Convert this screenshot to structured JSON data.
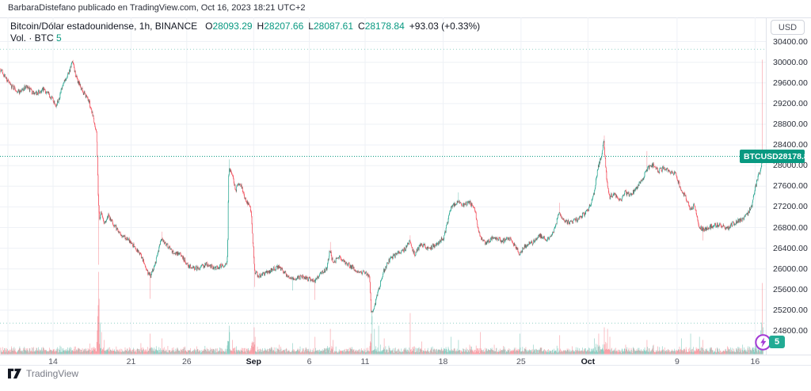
{
  "header": {
    "attribution": "BarbaraDistefano publicado en TradingView.com, Oct 16, 2023 18:21 UTC+2"
  },
  "legend": {
    "series_title": "Bitcoin/Dólar estadounidense, 1h, BINANCE",
    "ohlc": [
      {
        "label": "O",
        "value": "28093.29"
      },
      {
        "label": "H",
        "value": "28207.66"
      },
      {
        "label": "L",
        "value": "28087.61"
      },
      {
        "label": "C",
        "value": "28178.84"
      }
    ],
    "change": "+93.03 (+0.33%)",
    "volume_label": "Vol. · BTC",
    "volume_value": "5"
  },
  "price_scale": {
    "currency_button": "USD",
    "ticks": [
      "30400.00",
      "30000.00",
      "29600.00",
      "29200.00",
      "28800.00",
      "28400.00",
      "28000.00",
      "27600.00",
      "27200.00",
      "26800.00",
      "26400.00",
      "26000.00",
      "25600.00",
      "25200.00",
      "24800.00"
    ]
  },
  "time_scale": {
    "ticks": [
      {
        "label": "14",
        "day": 5,
        "bold": false
      },
      {
        "label": "21",
        "day": 12,
        "bold": false
      },
      {
        "label": "26",
        "day": 17,
        "bold": false
      },
      {
        "label": "Sep",
        "day": 23,
        "bold": true
      },
      {
        "label": "6",
        "day": 28,
        "bold": false
      },
      {
        "label": "11",
        "day": 33,
        "bold": false
      },
      {
        "label": "18",
        "day": 40,
        "bold": false
      },
      {
        "label": "25",
        "day": 47,
        "bold": false
      },
      {
        "label": "Oct",
        "day": 53,
        "bold": true
      },
      {
        "label": "9",
        "day": 61,
        "bold": false
      },
      {
        "label": "16",
        "day": 68,
        "bold": false
      }
    ],
    "extra_gridline_days": [
      0.95
    ]
  },
  "price_label": {
    "symbol": "BTCUSD",
    "price": "28178.84"
  },
  "volume_badge": "5",
  "footer": {
    "brand": "TradingView"
  },
  "colors": {
    "up": "#089981",
    "down": "#f23645",
    "grid": "#eef1f6",
    "border": "#e0e3eb",
    "dark_text": "#131722",
    "axis_text": "#2a2e39",
    "muted_text": "#787b86",
    "badge_bg": "#089981",
    "volume_badge_bg": "#22ab94",
    "bolt": "#a43ad6",
    "background": "#ffffff"
  },
  "chart_data": {
    "type": "candlestick",
    "symbol": "BTCUSD",
    "exchange": "BINANCE",
    "interval": "1h",
    "title": "Bitcoin/Dólar estadounidense",
    "y_axis": {
      "min": 24500,
      "max": 30500,
      "tick_step": 400,
      "ticks": [
        24800,
        25200,
        25600,
        26000,
        26400,
        26800,
        27200,
        27600,
        28000,
        28400,
        28800,
        29200,
        29600,
        30000,
        30400
      ]
    },
    "x_axis": {
      "unit": "days_since_2023-08-09",
      "visible_from": 0.3,
      "visible_to": 68.77
    },
    "last_bar": {
      "open": 28093.29,
      "high": 28207.66,
      "low": 28087.61,
      "close": 28178.84,
      "change": 93.03,
      "change_pct": 0.33
    },
    "current_price_line": 28178.84,
    "range_high_line": 30250,
    "range_low_line": 24950,
    "anchors": [
      [
        0.3,
        29880
      ],
      [
        1.2,
        29560
      ],
      [
        2.0,
        29430
      ],
      [
        2.6,
        29520
      ],
      [
        3.4,
        29380
      ],
      [
        4.2,
        29470
      ],
      [
        4.9,
        29320
      ],
      [
        5.35,
        29170
      ],
      [
        5.8,
        29460
      ],
      [
        6.3,
        29750
      ],
      [
        6.6,
        29880
      ],
      [
        6.78,
        30000
      ],
      [
        7.15,
        29680
      ],
      [
        7.7,
        29430
      ],
      [
        8.2,
        29280
      ],
      [
        8.6,
        29000
      ],
      [
        8.95,
        28620
      ],
      [
        9.02,
        28100
      ],
      [
        9.08,
        27500
      ],
      [
        9.2,
        26950
      ],
      [
        9.35,
        27120
      ],
      [
        9.6,
        26880
      ],
      [
        10.0,
        27020
      ],
      [
        10.6,
        26820
      ],
      [
        11.3,
        26640
      ],
      [
        12.0,
        26520
      ],
      [
        12.9,
        26280
      ],
      [
        13.55,
        25920
      ],
      [
        13.8,
        25870
      ],
      [
        14.3,
        26180
      ],
      [
        14.75,
        26600
      ],
      [
        15.2,
        26480
      ],
      [
        15.8,
        26320
      ],
      [
        16.5,
        26280
      ],
      [
        17.2,
        26060
      ],
      [
        18.0,
        26000
      ],
      [
        18.8,
        26090
      ],
      [
        19.6,
        26020
      ],
      [
        20.3,
        26070
      ],
      [
        20.62,
        26110
      ],
      [
        20.7,
        26300
      ],
      [
        20.78,
        27700
      ],
      [
        20.85,
        27950
      ],
      [
        21.1,
        27850
      ],
      [
        21.4,
        27520
      ],
      [
        21.8,
        27680
      ],
      [
        22.3,
        27350
      ],
      [
        22.8,
        27150
      ],
      [
        23.02,
        26350
      ],
      [
        23.15,
        25950
      ],
      [
        23.5,
        25860
      ],
      [
        24.3,
        25940
      ],
      [
        25.3,
        26050
      ],
      [
        26.0,
        25880
      ],
      [
        26.6,
        25800
      ],
      [
        27.4,
        25850
      ],
      [
        28.0,
        25800
      ],
      [
        28.5,
        25750
      ],
      [
        29.0,
        25900
      ],
      [
        29.6,
        26000
      ],
      [
        29.88,
        26380
      ],
      [
        30.15,
        26120
      ],
      [
        30.7,
        26230
      ],
      [
        31.5,
        26080
      ],
      [
        32.4,
        25960
      ],
      [
        33.2,
        25900
      ],
      [
        33.45,
        25850
      ],
      [
        33.6,
        25150
      ],
      [
        33.85,
        25250
      ],
      [
        34.2,
        25550
      ],
      [
        34.7,
        25950
      ],
      [
        35.3,
        26200
      ],
      [
        36.0,
        26300
      ],
      [
        36.6,
        26380
      ],
      [
        37.05,
        26520
      ],
      [
        37.5,
        26280
      ],
      [
        38.1,
        26480
      ],
      [
        38.8,
        26380
      ],
      [
        39.5,
        26500
      ],
      [
        40.1,
        26600
      ],
      [
        40.7,
        27150
      ],
      [
        41.35,
        27330
      ],
      [
        41.9,
        27230
      ],
      [
        42.4,
        27300
      ],
      [
        42.9,
        27130
      ],
      [
        43.35,
        26600
      ],
      [
        43.9,
        26500
      ],
      [
        44.6,
        26620
      ],
      [
        45.4,
        26540
      ],
      [
        46.1,
        26590
      ],
      [
        46.9,
        26290
      ],
      [
        47.4,
        26440
      ],
      [
        48.1,
        26520
      ],
      [
        48.7,
        26640
      ],
      [
        49.4,
        26560
      ],
      [
        50.05,
        26780
      ],
      [
        50.45,
        27080
      ],
      [
        50.95,
        26920
      ],
      [
        51.6,
        26890
      ],
      [
        52.4,
        27010
      ],
      [
        53.05,
        27120
      ],
      [
        53.6,
        27480
      ],
      [
        53.95,
        27990
      ],
      [
        54.25,
        28150
      ],
      [
        54.46,
        28480
      ],
      [
        54.75,
        27680
      ],
      [
        54.95,
        27390
      ],
      [
        55.4,
        27460
      ],
      [
        55.9,
        27310
      ],
      [
        56.4,
        27480
      ],
      [
        56.9,
        27430
      ],
      [
        57.4,
        27560
      ],
      [
        58.0,
        27760
      ],
      [
        58.45,
        27950
      ],
      [
        58.9,
        28010
      ],
      [
        59.4,
        27890
      ],
      [
        59.9,
        27960
      ],
      [
        60.4,
        27890
      ],
      [
        60.9,
        27840
      ],
      [
        61.4,
        27520
      ],
      [
        61.8,
        27390
      ],
      [
        62.2,
        27180
      ],
      [
        62.6,
        27220
      ],
      [
        63.0,
        26800
      ],
      [
        63.5,
        26760
      ],
      [
        64.0,
        26820
      ],
      [
        64.8,
        26860
      ],
      [
        65.5,
        26780
      ],
      [
        66.2,
        26900
      ],
      [
        66.9,
        26960
      ],
      [
        67.4,
        27080
      ],
      [
        67.8,
        27260
      ],
      [
        68.05,
        27560
      ],
      [
        68.35,
        27820
      ],
      [
        68.5,
        27900
      ],
      [
        68.58,
        27980
      ],
      [
        68.63,
        28050
      ],
      [
        68.7,
        28120
      ],
      [
        68.77,
        28178.84
      ]
    ],
    "wick_events": [
      [
        6.78,
        "h",
        30045
      ],
      [
        9.09,
        "l",
        26080
      ],
      [
        13.7,
        "l",
        25420
      ],
      [
        14.75,
        "h",
        26720
      ],
      [
        20.8,
        "h",
        28120
      ],
      [
        23.1,
        "l",
        25650
      ],
      [
        26.5,
        "l",
        25580
      ],
      [
        28.5,
        "l",
        25400
      ],
      [
        29.9,
        "h",
        26520
      ],
      [
        33.63,
        "l",
        24920
      ],
      [
        37.05,
        "h",
        26650
      ],
      [
        41.4,
        "h",
        27480
      ],
      [
        50.45,
        "h",
        27280
      ],
      [
        54.46,
        "h",
        28580
      ],
      [
        58.3,
        "h",
        28280
      ],
      [
        63.3,
        "l",
        26550
      ],
      [
        68.63,
        "h",
        30050
      ]
    ],
    "volume_events": [
      [
        8.98,
        30
      ],
      [
        9.02,
        48
      ],
      [
        9.06,
        62
      ],
      [
        9.09,
        104
      ],
      [
        9.13,
        70
      ],
      [
        9.2,
        40
      ],
      [
        9.35,
        28
      ],
      [
        9.6,
        18
      ],
      [
        12.9,
        14
      ],
      [
        13.7,
        26
      ],
      [
        14.75,
        20
      ],
      [
        20.8,
        36
      ],
      [
        20.85,
        28
      ],
      [
        21.1,
        18
      ],
      [
        23.05,
        34
      ],
      [
        23.15,
        22
      ],
      [
        25.3,
        12
      ],
      [
        26.5,
        14
      ],
      [
        28.5,
        22
      ],
      [
        29.9,
        32
      ],
      [
        30.15,
        18
      ],
      [
        33.57,
        26
      ],
      [
        33.63,
        48
      ],
      [
        33.85,
        32
      ],
      [
        34.2,
        36
      ],
      [
        34.7,
        20
      ],
      [
        37.05,
        52
      ],
      [
        38.1,
        16
      ],
      [
        40.7,
        22
      ],
      [
        41.4,
        18
      ],
      [
        42.4,
        12
      ],
      [
        43.35,
        28
      ],
      [
        44.6,
        12
      ],
      [
        46.9,
        26
      ],
      [
        48.1,
        12
      ],
      [
        50.45,
        24
      ],
      [
        51.6,
        10
      ],
      [
        53.6,
        20
      ],
      [
        53.95,
        26
      ],
      [
        54.46,
        34
      ],
      [
        54.75,
        32
      ],
      [
        54.95,
        22
      ],
      [
        56.4,
        12
      ],
      [
        58.3,
        18
      ],
      [
        58.9,
        12
      ],
      [
        61.4,
        20
      ],
      [
        62.2,
        26
      ],
      [
        63.0,
        22
      ],
      [
        63.3,
        18
      ],
      [
        65.5,
        10
      ],
      [
        66.9,
        12
      ],
      [
        68.05,
        16
      ],
      [
        68.35,
        22
      ],
      [
        68.5,
        30
      ],
      [
        68.58,
        40
      ],
      [
        68.63,
        90
      ],
      [
        68.7,
        34
      ],
      [
        68.77,
        8
      ]
    ]
  }
}
